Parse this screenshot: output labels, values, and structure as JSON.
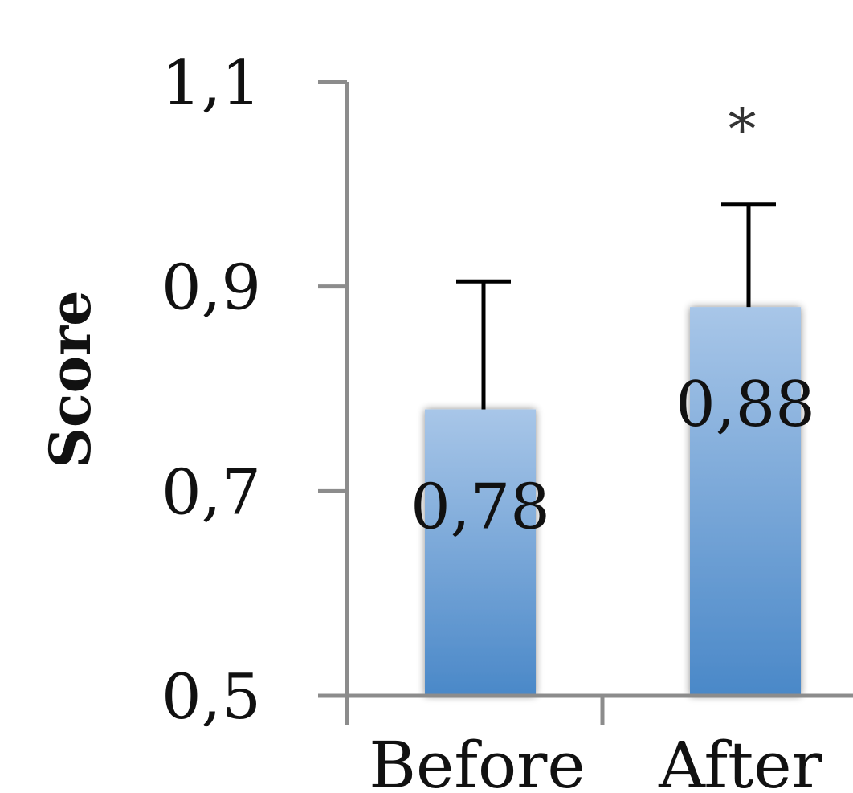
{
  "chart_data": {
    "type": "bar",
    "title": "",
    "xlabel": "",
    "ylabel": "Score",
    "categories": [
      "Before",
      "After"
    ],
    "values": [
      0.78,
      0.88
    ],
    "value_labels": [
      "0,78",
      "0,88"
    ],
    "error_plus": [
      0.125,
      0.1
    ],
    "significance": [
      "",
      "*"
    ],
    "ylim": [
      0.5,
      1.1
    ],
    "yticks": [
      0.5,
      0.7,
      0.9,
      1.1
    ],
    "ytick_labels": [
      "0,5",
      "0,7",
      "0,9",
      "1,1"
    ],
    "grid": false,
    "legend": "none",
    "bar_color_top": "#a8c6e8",
    "bar_color_bottom": "#4a88c8",
    "axis_color": "#8c8c8c",
    "error_bar_color": "#000000"
  }
}
